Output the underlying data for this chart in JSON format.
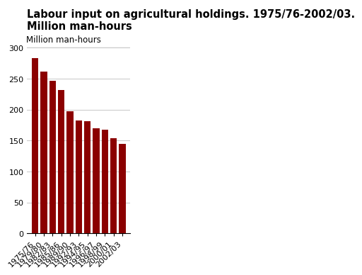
{
  "title_line1": "Labour input on agricultural holdings. 1975/76-2002/03.",
  "title_line2": "Million man-hours",
  "ylabel": "Million man-hours",
  "categories": [
    "1975/76",
    "1979/80",
    "1982/83",
    "1985/86",
    "1989/90",
    "1992/93",
    "1994/95",
    "1996/97",
    "1998/99",
    "2000/01",
    "2002/03"
  ],
  "values": [
    283,
    262,
    247,
    232,
    197,
    183,
    181,
    170,
    167,
    154,
    145
  ],
  "bar_color": "#8B0000",
  "ylim": [
    0,
    300
  ],
  "yticks": [
    0,
    50,
    100,
    150,
    200,
    250,
    300
  ],
  "title_fontsize": 10.5,
  "ylabel_fontsize": 8.5,
  "tick_fontsize": 8,
  "background_color": "#ffffff",
  "grid_color": "#cccccc"
}
